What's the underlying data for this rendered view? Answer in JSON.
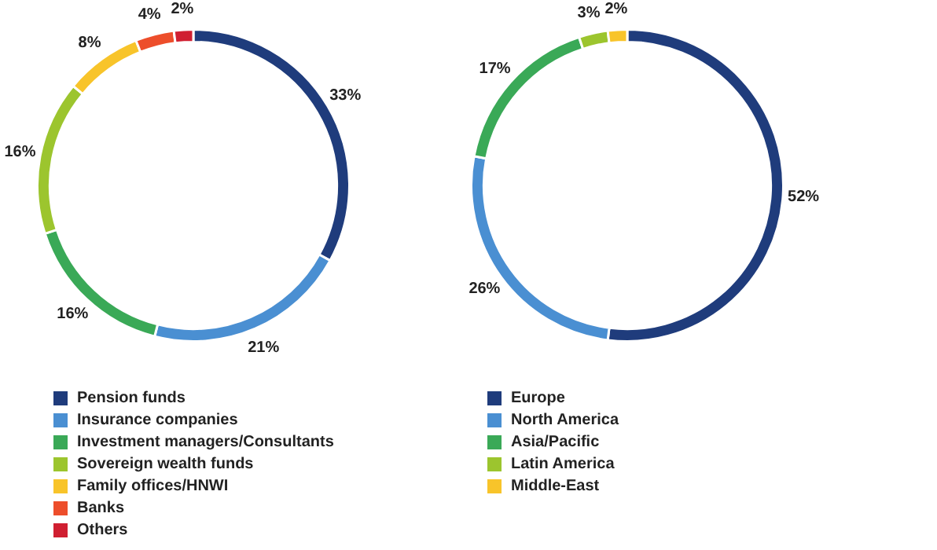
{
  "chart_data": [
    {
      "type": "donut",
      "categories": [
        "Pension funds",
        "Insurance companies",
        "Investment managers/Consultants",
        "Sovereign wealth funds",
        "Family offices/HNWI",
        "Banks",
        "Others"
      ],
      "values": [
        33,
        21,
        16,
        16,
        8,
        4,
        2
      ],
      "colors": [
        "#1f3c7c",
        "#4a8fd2",
        "#3aa957",
        "#9cc52e",
        "#f8c42a",
        "#ed4e2b",
        "#d01f31"
      ],
      "value_labels": [
        "33%",
        "21%",
        "16%",
        "16%",
        "8%",
        "4%",
        "2%"
      ],
      "legend": "bottom"
    },
    {
      "type": "donut",
      "categories": [
        "Europe",
        "North America",
        "Asia/Pacific",
        "Latin America",
        "Middle-East"
      ],
      "values": [
        52,
        26,
        17,
        3,
        2
      ],
      "colors": [
        "#1f3c7c",
        "#4a8fd2",
        "#3aa957",
        "#9cc52e",
        "#f8c42a"
      ],
      "value_labels": [
        "52%",
        "26%",
        "17%",
        "3%",
        "2%"
      ],
      "legend": "bottom"
    }
  ]
}
